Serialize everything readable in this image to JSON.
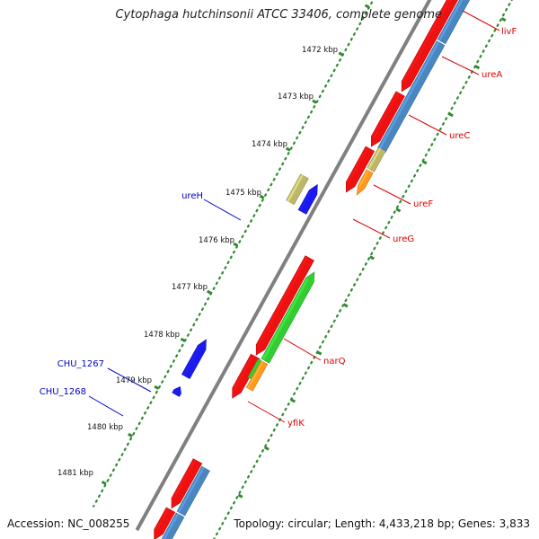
{
  "title": "Cytophaga hutchinsonii ATCC 33406, complete genome",
  "accession": "Accession: NC_008255",
  "summary": "Topology: circular; Length: 4,433,218 bp; Genes: 3,833",
  "colors": {
    "backbone": "#808080",
    "ruler": "#2e8b2e",
    "cds_forward": "#ee1111",
    "cds_reverse": "#4a86c0",
    "gene_blue": "#1a1aee",
    "khaki": "#bdb76b",
    "green": "#33cc33",
    "orange": "#ff9922",
    "label_red": "#dd0000",
    "label_blue": "#0000cc"
  },
  "scale_labels": [
    "1472 kbp",
    "1473 kbp",
    "1474 kbp",
    "1475 kbp",
    "1476 kbp",
    "1477 kbp",
    "1478 kbp",
    "1479 kbp",
    "1480 kbp",
    "1481 kbp"
  ],
  "genes_right": [
    {
      "name": "livF"
    },
    {
      "name": "ureA"
    },
    {
      "name": "ureC"
    },
    {
      "name": "ureF"
    },
    {
      "name": "ureG"
    },
    {
      "name": "narQ"
    },
    {
      "name": "yfiK"
    }
  ],
  "genes_left": [
    {
      "name": "ureH"
    },
    {
      "name": "CHU_1267"
    },
    {
      "name": "CHU_1268"
    }
  ]
}
